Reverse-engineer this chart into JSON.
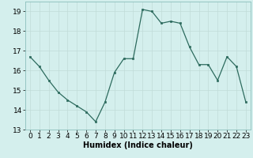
{
  "x": [
    0,
    1,
    2,
    3,
    4,
    5,
    6,
    7,
    8,
    9,
    10,
    11,
    12,
    13,
    14,
    15,
    16,
    17,
    18,
    19,
    20,
    21,
    22,
    23
  ],
  "y": [
    16.7,
    16.2,
    15.5,
    14.9,
    14.5,
    14.2,
    13.9,
    13.4,
    14.4,
    15.9,
    16.6,
    16.6,
    19.1,
    19.0,
    18.4,
    18.5,
    18.4,
    17.2,
    16.3,
    16.3,
    15.5,
    16.7,
    16.2,
    14.4
  ],
  "xlabel": "Humidex (Indice chaleur)",
  "xlim": [
    -0.5,
    23.5
  ],
  "ylim": [
    13,
    19.5
  ],
  "yticks": [
    13,
    14,
    15,
    16,
    17,
    18,
    19
  ],
  "xticks": [
    0,
    1,
    2,
    3,
    4,
    5,
    6,
    7,
    8,
    9,
    10,
    11,
    12,
    13,
    14,
    15,
    16,
    17,
    18,
    19,
    20,
    21,
    22,
    23
  ],
  "line_color": "#2d6b5e",
  "marker_color": "#2d6b5e",
  "bg_color": "#d4efed",
  "grid_color": "#c0dcd8",
  "label_fontsize": 7,
  "tick_fontsize": 6.5
}
